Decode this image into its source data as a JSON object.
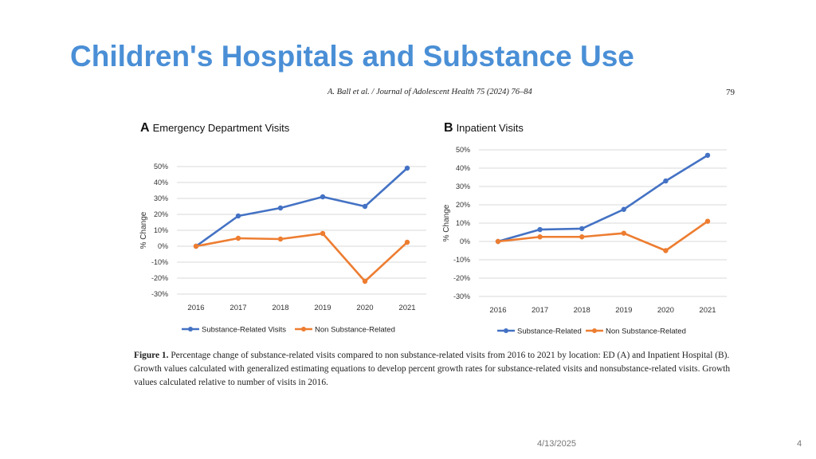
{
  "slide": {
    "title": "Children's Hospitals and Substance Use",
    "citation": "A. Ball et al. / Journal of Adolescent Health 75 (2024) 76–84",
    "page_ref": "79",
    "footer_date": "4/13/2025",
    "footer_page": "4"
  },
  "caption": {
    "label": "Figure 1.",
    "text": "Percentage change of substance-related visits compared to non substance-related visits from 2016 to 2021 by location: ED (A) and Inpatient Hospital (B). Growth values calculated with generalized estimating equations to develop percent growth rates for substance-related visits and nonsubstance-related visits. Growth values calculated relative to number of visits in 2016."
  },
  "colors": {
    "substance": "#4472c4",
    "non_substance": "#ed7d31",
    "grid": "#d9d9d9",
    "title": "#4a8fd6"
  },
  "chart_data": [
    {
      "type": "line",
      "panel_letter": "A",
      "title": "Emergency Department Visits",
      "ylabel": "% Change",
      "xlabel": "",
      "ylim": [
        -30,
        50
      ],
      "yticks": [
        -30,
        -20,
        -10,
        0,
        10,
        20,
        30,
        40,
        50
      ],
      "ytick_labels": [
        "-30%",
        "-20%",
        "-10%",
        "0%",
        "10%",
        "20%",
        "30%",
        "40%",
        "50%"
      ],
      "categories": [
        "2016",
        "2017",
        "2018",
        "2019",
        "2020",
        "2021"
      ],
      "grid": true,
      "legend_position": "bottom",
      "series": [
        {
          "name": "Substance-Related Visits",
          "values": [
            0,
            19,
            24,
            31,
            25,
            49
          ]
        },
        {
          "name": "Non Substance-Related",
          "values": [
            0,
            5,
            4.5,
            8,
            -22,
            2.5
          ]
        }
      ]
    },
    {
      "type": "line",
      "panel_letter": "B",
      "title": "Inpatient Visits",
      "ylabel": "% Change",
      "xlabel": "",
      "ylim": [
        -30,
        50
      ],
      "yticks": [
        -30,
        -20,
        -10,
        0,
        10,
        20,
        30,
        40,
        50
      ],
      "ytick_labels": [
        "-30%",
        "-20%",
        "-10%",
        "0%",
        "10%",
        "20%",
        "30%",
        "40%",
        "50%"
      ],
      "categories": [
        "2016",
        "2017",
        "2018",
        "2019",
        "2020",
        "2021"
      ],
      "grid": true,
      "legend_position": "bottom",
      "series": [
        {
          "name": "Substance-Related",
          "values": [
            0,
            6.5,
            7,
            17.5,
            33,
            47
          ]
        },
        {
          "name": "Non Substance-Related",
          "values": [
            0,
            2.5,
            2.5,
            4.5,
            -5,
            11
          ]
        }
      ]
    }
  ]
}
